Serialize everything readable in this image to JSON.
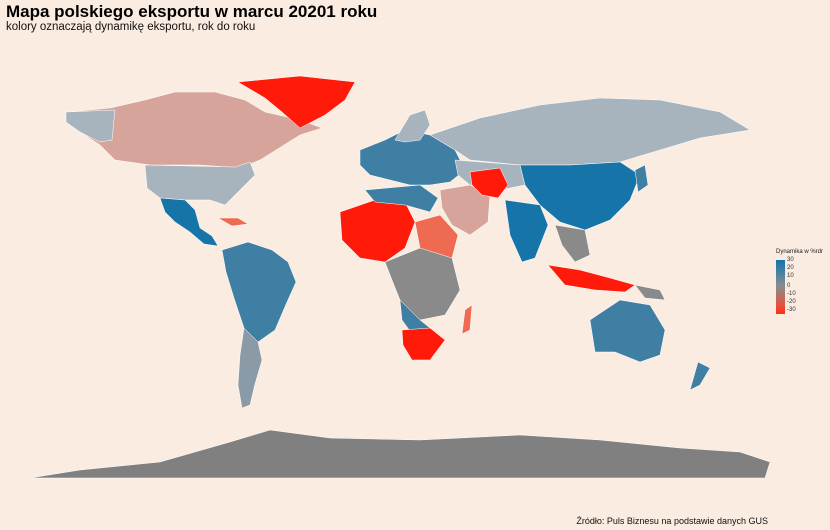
{
  "title": "Mapa polskiego eksportu w marcu 20201 roku",
  "subtitle": "kolory oznaczają dynamikę eksportu, rok do roku",
  "legend": {
    "title": "Dynamika w %rdr",
    "ticks": [
      "30",
      "20",
      "10",
      "0",
      "-10",
      "-20",
      "-30"
    ]
  },
  "source": "Źródło: Puls Biznesu na podstawie danych GUS",
  "colors": {
    "background": "#faece0",
    "strong_positive": "#1774a8",
    "positive": "#3f7fa4",
    "neutral": "#8a8a8a",
    "light_neutral": "#a8b4bd",
    "slight_negative": "#d6a49a",
    "negative": "#ee6a50",
    "strong_negative": "#ff1a0a"
  }
}
